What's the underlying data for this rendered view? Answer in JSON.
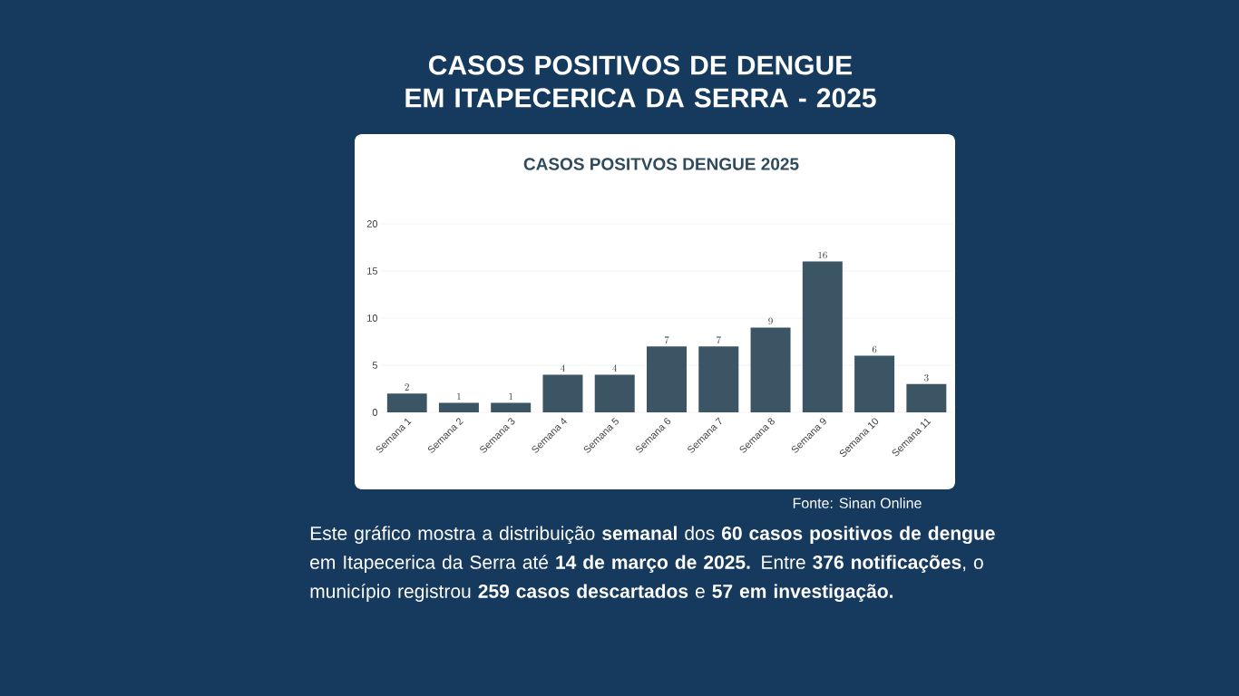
{
  "chart_data": {
    "type": "bar",
    "title": "CASOS POSITIVOS DE DENGUE EM ITAPECERICA DA SERRA - 2025",
    "subtitle": "CASOS POSITVOS DENGUE 2025",
    "categories": [
      "Semana 1",
      "Semana 2",
      "Semana 3",
      "Semana 4",
      "Semana 5",
      "Semana 6",
      "Semana 7",
      "Semana 8",
      "Semana 9",
      "Semana 10",
      "Semana 11"
    ],
    "values": [
      2,
      1,
      1,
      4,
      4,
      7,
      7,
      9,
      16,
      6,
      3
    ],
    "color": "#3b5564",
    "ylim": [
      0,
      20
    ],
    "yticks": [
      0,
      5,
      10,
      15,
      20
    ],
    "grid": "y",
    "data_labels": true,
    "annotations": [
      "Fonte: Sinan Online",
      "Este gráfico mostra a distribuição **semanal** dos **60 casos positivos de dengue** em Itapecerica da Serra até **14 de março de 2025.** Entre **376 notificações**, o município registrou **259 casos descartados** e **57 em investigação.**"
    ]
  }
}
